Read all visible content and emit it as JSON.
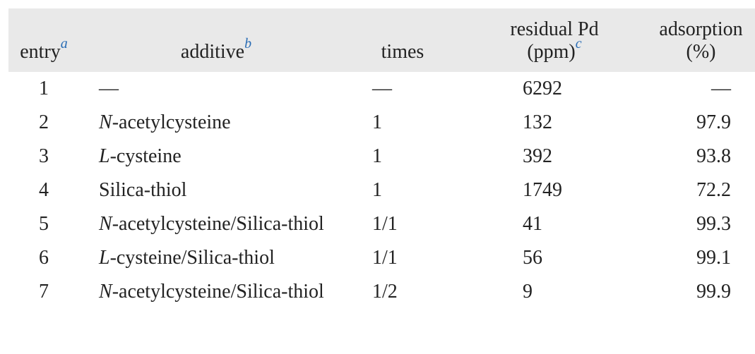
{
  "table": {
    "header": [
      {
        "text": "entry",
        "note": "a"
      },
      {
        "text": "additive",
        "note": "b"
      },
      {
        "text": "times"
      },
      {
        "text": "residual Pd",
        "text2": "(ppm)",
        "note": "c"
      },
      {
        "text": "adsorption",
        "text2": "(%)"
      }
    ],
    "rows": [
      [
        1,
        "—",
        "—",
        6292,
        "—"
      ],
      [
        2,
        {
          "italic": "N",
          "rest": "-acetylcysteine"
        },
        1,
        132,
        97.9
      ],
      [
        3,
        {
          "italic": "L",
          "rest": "-cysteine"
        },
        1,
        392,
        93.8
      ],
      [
        4,
        "Silica-thiol",
        1,
        1749,
        72.2
      ],
      [
        5,
        {
          "italic": "N",
          "rest": "-acetylcysteine/Silica-thiol"
        },
        "1/1",
        41,
        99.3
      ],
      [
        6,
        {
          "italic": "L",
          "rest": "-cysteine/Silica-thiol"
        },
        "1/1",
        56,
        99.1
      ],
      [
        7,
        {
          "italic": "N",
          "rest": "-acetylcysteine/Silica-thiol"
        },
        "1/2",
        9,
        99.9
      ]
    ]
  }
}
